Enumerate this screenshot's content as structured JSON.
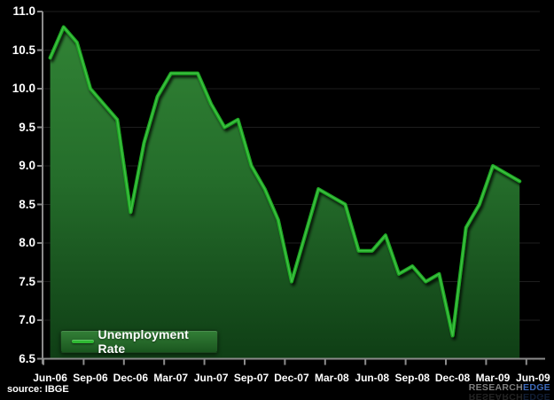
{
  "chart_data": {
    "type": "area",
    "title": "",
    "series_name": "Unemployment Rate",
    "x": [
      "Jun-06",
      "Jul-06",
      "Aug-06",
      "Sep-06",
      "Oct-06",
      "Nov-06",
      "Dec-06",
      "Jan-07",
      "Feb-07",
      "Mar-07",
      "Apr-07",
      "May-07",
      "Jun-07",
      "Jul-07",
      "Aug-07",
      "Sep-07",
      "Oct-07",
      "Nov-07",
      "Dec-07",
      "Jan-08",
      "Feb-08",
      "Mar-08",
      "Apr-08",
      "May-08",
      "Jun-08",
      "Jul-08",
      "Aug-08",
      "Sep-08",
      "Oct-08",
      "Nov-08",
      "Dec-08",
      "Jan-09",
      "Feb-09",
      "Mar-09",
      "Apr-09",
      "May-09"
    ],
    "values": [
      10.4,
      10.8,
      10.6,
      10.0,
      9.8,
      9.6,
      8.4,
      9.3,
      9.9,
      10.2,
      10.2,
      10.2,
      9.8,
      9.5,
      9.6,
      9.0,
      8.7,
      8.3,
      7.5,
      8.1,
      8.7,
      8.6,
      8.5,
      7.9,
      7.9,
      8.1,
      7.6,
      7.7,
      7.5,
      7.6,
      6.8,
      8.2,
      8.5,
      9.0,
      8.9,
      8.8
    ],
    "x_tick_labels": [
      "Jun-06",
      "Sep-06",
      "Dec-06",
      "Mar-07",
      "Jun-07",
      "Sep-07",
      "Dec-07",
      "Mar-08",
      "Jun-08",
      "Sep-08",
      "Dec-08",
      "Mar-09",
      "Jun-09"
    ],
    "y_tick_labels": [
      "11.0",
      "10.5",
      "10.0",
      "9.5",
      "9.0",
      "8.5",
      "8.0",
      "7.5",
      "7.0",
      "6.5"
    ],
    "ylim": [
      6.5,
      11.0
    ],
    "y_tick_step": 0.5,
    "grid": "horizontal",
    "legend_position": "bottom-left",
    "colors": {
      "background": "#000000",
      "line": "#1fa823",
      "line_highlight": "#46c44a",
      "legend_swatch": "#2eb832",
      "area_top": "#318335",
      "area_mid": "#256e2b",
      "area_bottom": "#0f3e15",
      "axis": "#8c8c8c",
      "gridline": "#1e1e1e",
      "label": "#ffffff"
    }
  },
  "legend": {
    "label": "Unemployment Rate"
  },
  "footer": {
    "source_text": "source: IBGE",
    "logo_part1": "RESEARCH",
    "logo_part2": "EDGE"
  }
}
